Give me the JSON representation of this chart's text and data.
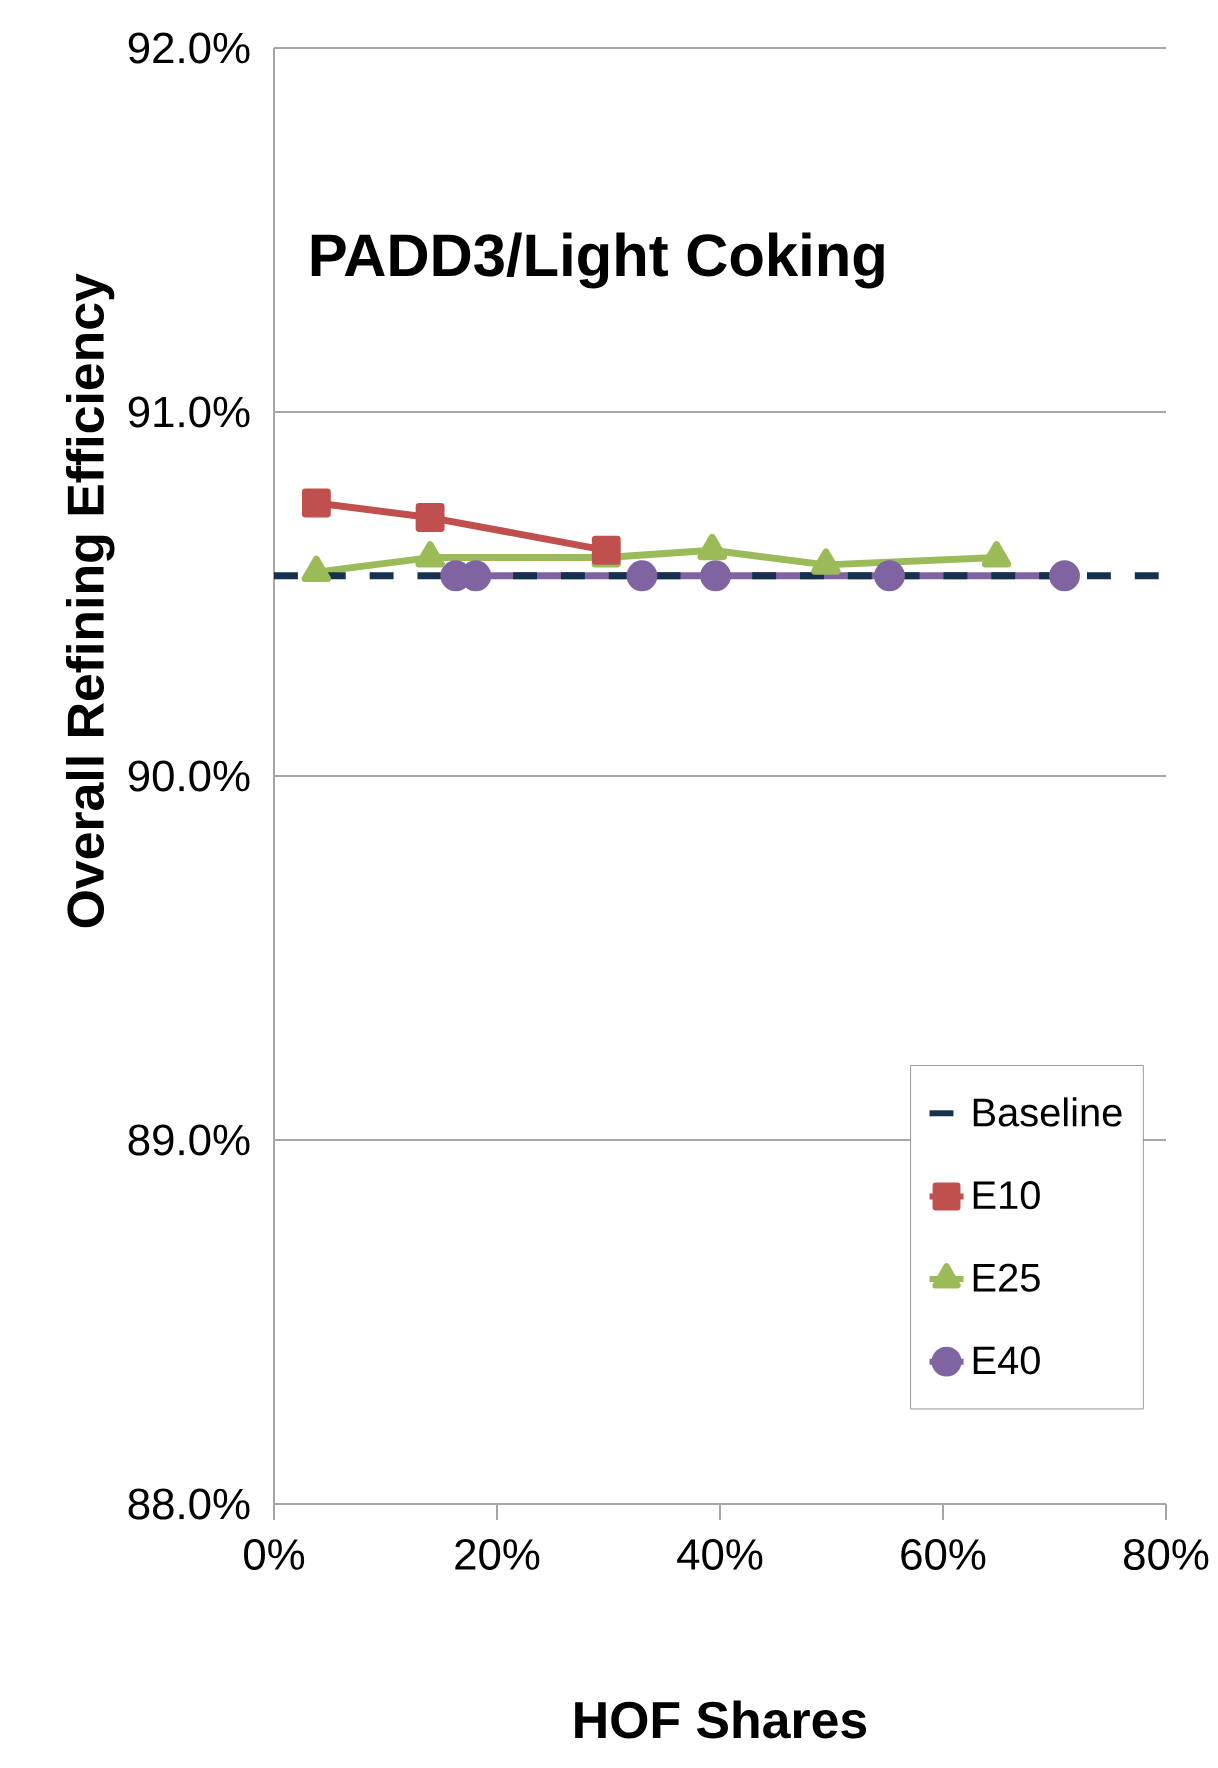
{
  "chart_data": {
    "type": "line",
    "title": "PADD3/Light Coking",
    "xlabel": "HOF Shares",
    "ylabel": "Overall Refining Efficiency",
    "xlim": [
      0,
      80
    ],
    "xticks": [
      {
        "value": 0,
        "label": "0%"
      },
      {
        "value": 20,
        "label": "20%"
      },
      {
        "value": 40,
        "label": "40%"
      },
      {
        "value": 60,
        "label": "60%"
      },
      {
        "value": 80,
        "label": "80%"
      }
    ],
    "ylim": [
      88,
      92
    ],
    "yticks": [
      {
        "value": 88,
        "label": "88.0%"
      },
      {
        "value": 89,
        "label": "89.0%"
      },
      {
        "value": 90,
        "label": "90.0%"
      },
      {
        "value": 91,
        "label": "91.0%"
      },
      {
        "value": 92,
        "label": "92.0%"
      }
    ],
    "grid": "y",
    "legend": "bottom right",
    "series": [
      {
        "name": "Baseline",
        "color": "#17304d",
        "x": [
          0,
          80
        ],
        "values": [
          90.55,
          90.55
        ],
        "marker": "none",
        "line_style": "dashed"
      },
      {
        "name": "E10",
        "color": "#c0504d",
        "x": [
          3.8,
          14,
          29.8
        ],
        "values": [
          90.75,
          90.71,
          90.62
        ],
        "marker": "square",
        "line_style": "solid"
      },
      {
        "name": "E25",
        "color": "#9bbb59",
        "x": [
          3.8,
          14,
          29.8,
          39.3,
          49.5,
          64.8
        ],
        "values": [
          90.56,
          90.6,
          90.6,
          90.62,
          90.58,
          90.6
        ],
        "marker": "triangle",
        "line_style": "solid"
      },
      {
        "name": "E40",
        "color": "#8064a2",
        "x": [
          16.3,
          18.1,
          33,
          39.6,
          55.2,
          70.9
        ],
        "values": [
          90.55,
          90.55,
          90.55,
          90.55,
          90.55,
          90.55
        ],
        "marker": "circle",
        "line_style": "solid"
      }
    ]
  }
}
